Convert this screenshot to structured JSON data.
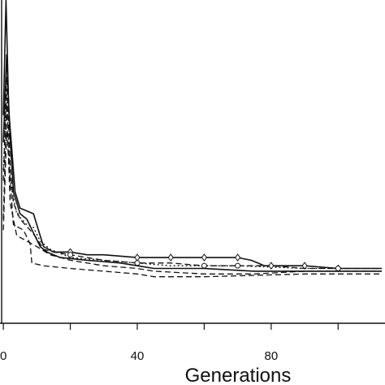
{
  "chart_data": {
    "type": "line",
    "title": "",
    "xlabel": "Generations",
    "ylabel": "",
    "xlim": [
      -1,
      114
    ],
    "ylim": [
      -18,
      100
    ],
    "grid": false,
    "legend": "none",
    "axis_color": "#111111",
    "x_ticks": [
      {
        "value": 0,
        "label": "0"
      },
      {
        "value": 20,
        "label": ""
      },
      {
        "value": 40,
        "label": "40"
      },
      {
        "value": 60,
        "label": ""
      },
      {
        "value": 80,
        "label": "80"
      },
      {
        "value": 100,
        "label": ""
      }
    ],
    "series": [
      {
        "style": "solid",
        "marker": "diamond",
        "color": "#111111",
        "points": [
          [
            0,
            58
          ],
          [
            0.8,
            100
          ],
          [
            1.6,
            60
          ],
          [
            2.5,
            46
          ],
          [
            3.5,
            30
          ],
          [
            5,
            24
          ],
          [
            7,
            23
          ],
          [
            9,
            22
          ],
          [
            10,
            18
          ],
          [
            12,
            10
          ],
          [
            15,
            8
          ],
          [
            20,
            8
          ],
          [
            25,
            7
          ],
          [
            30,
            7
          ],
          [
            40,
            6
          ],
          [
            50,
            6
          ],
          [
            60,
            6
          ],
          [
            70,
            6
          ],
          [
            74,
            5
          ],
          [
            76,
            4
          ],
          [
            78,
            3
          ],
          [
            85,
            3
          ],
          [
            90,
            3
          ],
          [
            100,
            2
          ],
          [
            113,
            2
          ]
        ],
        "markers_at": [
          20,
          40,
          50,
          60,
          70,
          80,
          90,
          100
        ]
      },
      {
        "style": "solid",
        "marker": "none",
        "color": "#111111",
        "points": [
          [
            0,
            48
          ],
          [
            1,
            80
          ],
          [
            2,
            50
          ],
          [
            3,
            30
          ],
          [
            5,
            22
          ],
          [
            7,
            20
          ],
          [
            9,
            15
          ],
          [
            11,
            10
          ],
          [
            13,
            8
          ],
          [
            17,
            6
          ],
          [
            25,
            5
          ],
          [
            35,
            4
          ],
          [
            40,
            3
          ],
          [
            45,
            2
          ],
          [
            60,
            2
          ],
          [
            75,
            1
          ],
          [
            90,
            1
          ],
          [
            113,
            1
          ]
        ],
        "markers_at": []
      },
      {
        "style": "dashed",
        "marker": "circle",
        "color": "#111111",
        "points": [
          [
            0,
            34
          ],
          [
            1,
            72
          ],
          [
            2,
            40
          ],
          [
            3,
            26
          ],
          [
            5,
            20
          ],
          [
            8,
            16
          ],
          [
            10,
            13
          ],
          [
            12,
            9
          ],
          [
            15,
            8
          ],
          [
            20,
            7
          ],
          [
            25,
            6
          ],
          [
            30,
            5
          ],
          [
            40,
            4
          ],
          [
            50,
            4
          ],
          [
            60,
            3
          ],
          [
            70,
            3
          ],
          [
            80,
            3
          ],
          [
            90,
            2
          ],
          [
            100,
            2
          ],
          [
            113,
            2
          ]
        ],
        "markers_at": [
          20,
          40,
          60,
          70,
          100
        ]
      },
      {
        "style": "dashed",
        "marker": "none",
        "color": "#111111",
        "points": [
          [
            0,
            20
          ],
          [
            1,
            62
          ],
          [
            2,
            26
          ],
          [
            4,
            14
          ],
          [
            7,
            12
          ],
          [
            10,
            10
          ],
          [
            14,
            7
          ],
          [
            20,
            5
          ],
          [
            30,
            3
          ],
          [
            40,
            2
          ],
          [
            45,
            1
          ],
          [
            60,
            0
          ],
          [
            75,
            0
          ],
          [
            90,
            1
          ],
          [
            113,
            1
          ]
        ],
        "markers_at": []
      },
      {
        "style": "dashed",
        "marker": "none",
        "color": "#111111",
        "points": [
          [
            0,
            16
          ],
          [
            1,
            52
          ],
          [
            3,
            18
          ],
          [
            6,
            16
          ],
          [
            8,
            11
          ],
          [
            8.5,
            4
          ],
          [
            12,
            3
          ],
          [
            20,
            2
          ],
          [
            30,
            1
          ],
          [
            40,
            0
          ],
          [
            45,
            -1
          ],
          [
            60,
            -1
          ],
          [
            90,
            0
          ],
          [
            113,
            0
          ]
        ],
        "markers_at": []
      },
      {
        "style": "dotted",
        "marker": "none",
        "color": "#111111",
        "points": [
          [
            0,
            38
          ],
          [
            1,
            66
          ],
          [
            2,
            34
          ],
          [
            4,
            22
          ],
          [
            7,
            18
          ],
          [
            9,
            17
          ],
          [
            11,
            12
          ],
          [
            14,
            9
          ],
          [
            20,
            6
          ],
          [
            30,
            5
          ],
          [
            40,
            4
          ],
          [
            50,
            3
          ],
          [
            70,
            3
          ],
          [
            90,
            2
          ],
          [
            113,
            2
          ]
        ],
        "markers_at": []
      }
    ]
  }
}
